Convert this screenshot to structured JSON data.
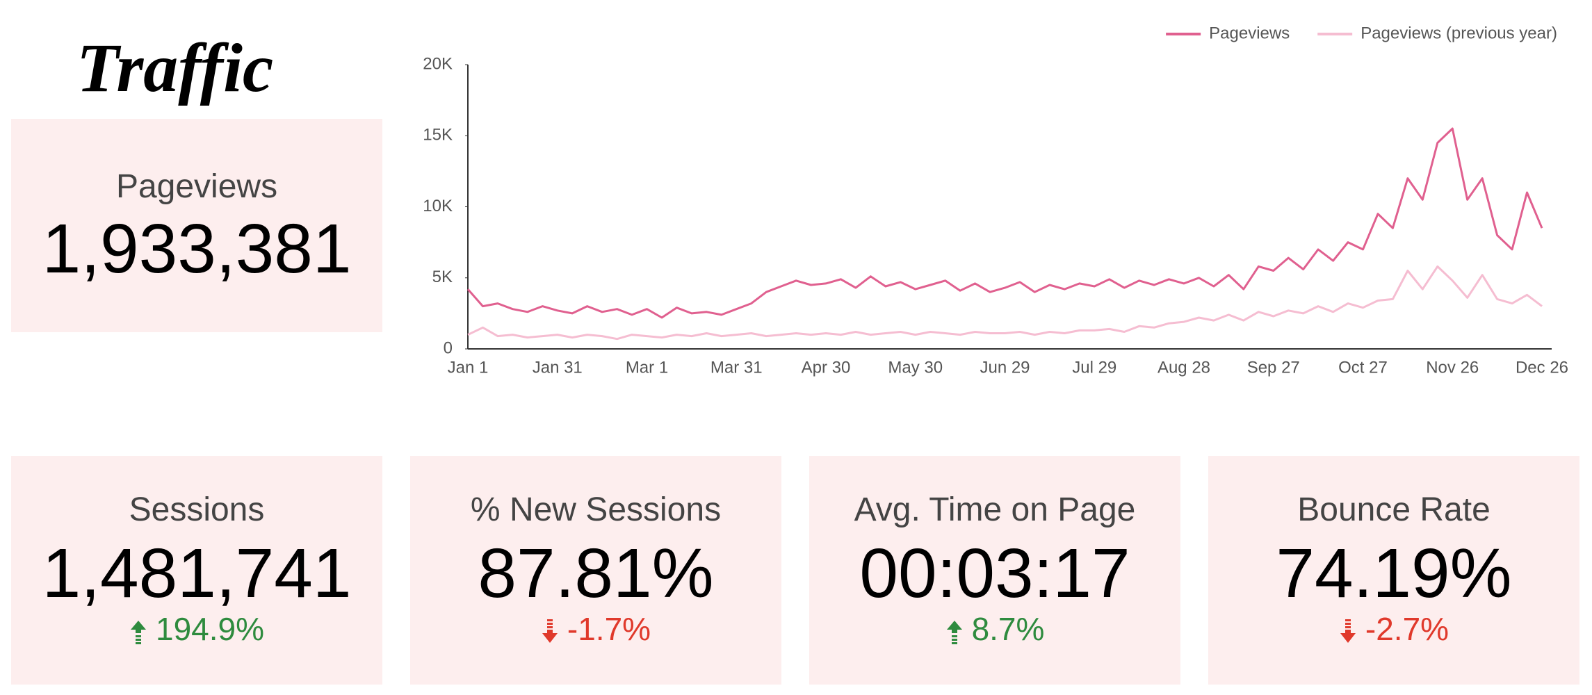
{
  "title": "Traffic",
  "scorecards": [
    {
      "label": "Pageviews",
      "value": "1,933,381"
    },
    {
      "label": "Sessions",
      "value": "1,481,741",
      "change": "194.9%",
      "direction": "up"
    },
    {
      "label": "% New Sessions",
      "value": "87.81%",
      "change": "-1.7%",
      "direction": "down"
    },
    {
      "label": "Avg. Time on Page",
      "value": "00:03:17",
      "change": "8.7%",
      "direction": "up"
    },
    {
      "label": "Bounce Rate",
      "value": "74.19%",
      "change": "-2.7%",
      "direction": "down"
    }
  ],
  "chart_data": {
    "type": "line",
    "legend": "top-right",
    "categories": [
      "Jan 1",
      null,
      null,
      null,
      null,
      null,
      "Jan 31",
      null,
      null,
      null,
      null,
      null,
      "Mar 1",
      null,
      null,
      null,
      null,
      null,
      "Mar 31",
      null,
      null,
      null,
      null,
      null,
      "Apr 30",
      null,
      null,
      null,
      null,
      null,
      "May 30",
      null,
      null,
      null,
      null,
      null,
      "Jun 29",
      null,
      null,
      null,
      null,
      null,
      "Jul 29",
      null,
      null,
      null,
      null,
      null,
      "Aug 28",
      null,
      null,
      null,
      null,
      null,
      "Sep 27",
      null,
      null,
      null,
      null,
      null,
      "Oct 27",
      null,
      null,
      null,
      null,
      null,
      "Nov 26",
      null,
      null,
      null,
      null,
      null,
      "Dec 26"
    ],
    "series": [
      {
        "name": "Pageviews",
        "color": "#e0608f",
        "values": [
          4200,
          3000,
          3200,
          2800,
          2600,
          3000,
          2700,
          2500,
          3000,
          2600,
          2800,
          2400,
          2800,
          2200,
          2900,
          2500,
          2600,
          2400,
          2800,
          3200,
          4000,
          4400,
          4800,
          4500,
          4600,
          4900,
          4300,
          5100,
          4400,
          4700,
          4200,
          4500,
          4800,
          4100,
          4600,
          4000,
          4300,
          4700,
          4000,
          4500,
          4200,
          4600,
          4400,
          4900,
          4300,
          4800,
          4500,
          4900,
          4600,
          5000,
          4400,
          5200,
          4200,
          5800,
          5500,
          6400,
          5600,
          7000,
          6200,
          7500,
          7000,
          9500,
          8500,
          12000,
          10500,
          14500,
          15500,
          10500,
          12000,
          8000,
          7000,
          11000,
          8500
        ]
      },
      {
        "name": "Pageviews (previous year)",
        "color": "#f5bdd1",
        "values": [
          1000,
          1500,
          900,
          1000,
          800,
          900,
          1000,
          800,
          1000,
          900,
          700,
          1000,
          900,
          800,
          1000,
          900,
          1100,
          900,
          1000,
          1100,
          900,
          1000,
          1100,
          1000,
          1100,
          1000,
          1200,
          1000,
          1100,
          1200,
          1000,
          1200,
          1100,
          1000,
          1200,
          1100,
          1100,
          1200,
          1000,
          1200,
          1100,
          1300,
          1300,
          1400,
          1200,
          1600,
          1500,
          1800,
          1900,
          2200,
          2000,
          2400,
          2000,
          2600,
          2300,
          2700,
          2500,
          3000,
          2600,
          3200,
          2900,
          3400,
          3500,
          5500,
          4200,
          5800,
          4800,
          3600,
          5200,
          3500,
          3200,
          3800,
          3000
        ]
      }
    ],
    "ylim": [
      0,
      20000
    ],
    "yticks": [
      0,
      {
        "value": 5000,
        "label": "5K"
      },
      {
        "value": 10000,
        "label": "10K"
      },
      {
        "value": 15000,
        "label": "15K"
      },
      {
        "value": 20000,
        "label": "20K"
      }
    ]
  }
}
